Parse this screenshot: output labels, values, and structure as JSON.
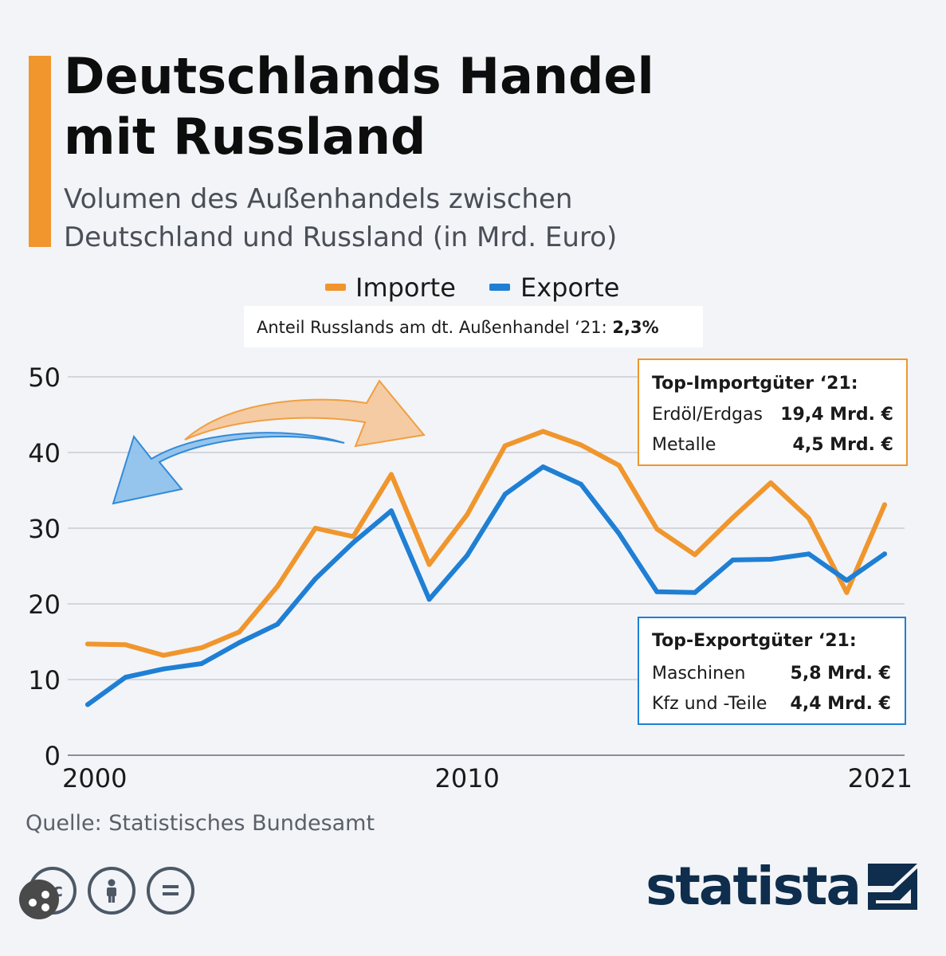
{
  "header": {
    "title": "Deutschlands Handel\nmit Russland",
    "subtitle": "Volumen des Außenhandels zwischen\nDeutschland und Russland (in Mrd. Euro)"
  },
  "legend": {
    "importe_label": "Importe",
    "exporte_label": "Exporte",
    "note_prefix": "Anteil Russlands am dt. Außenhandel ‘21: ",
    "note_value": "2,3%"
  },
  "import_box": {
    "title": "Top-Importgüter ‘21:",
    "rows": [
      {
        "label": "Erdöl/Erdgas",
        "value": "19,4 Mrd. €"
      },
      {
        "label": "Metalle",
        "value": "4,5 Mrd. €"
      }
    ]
  },
  "export_box": {
    "title": "Top-Exportgüter ‘21:",
    "rows": [
      {
        "label": "Maschinen",
        "value": "5,8 Mrd. €"
      },
      {
        "label": "Kfz und -Teile",
        "value": "4,4 Mrd. €"
      }
    ]
  },
  "colors": {
    "importe": "#f0962d",
    "exporte": "#1f7fd4",
    "grid": "#c9ccd2",
    "axis_text": "#1a1a1a",
    "import_box_border": "#f0962d",
    "export_box_border": "#1f7fd4",
    "accent": "#f0962d",
    "logo": "#0f2d4c"
  },
  "chart_data": {
    "type": "line",
    "title": "Deutschlands Handel mit Russland",
    "subtitle": "Volumen des Außenhandels zwischen Deutschland und Russland (in Mrd. Euro)",
    "xlabel": "",
    "ylabel": "",
    "x": [
      2000,
      2001,
      2002,
      2003,
      2004,
      2005,
      2006,
      2007,
      2008,
      2009,
      2010,
      2011,
      2012,
      2013,
      2014,
      2015,
      2016,
      2017,
      2018,
      2019,
      2020,
      2021
    ],
    "x_tick_labels": [
      {
        "x": 2000,
        "label": "2000"
      },
      {
        "x": 2010,
        "label": "2010"
      },
      {
        "x": 2021,
        "label": "2021"
      }
    ],
    "y_ticks": [
      0,
      10,
      20,
      30,
      40,
      50
    ],
    "y_tick_labels": [
      "0",
      "10",
      "20",
      "30",
      "40",
      "50"
    ],
    "ylim": [
      0,
      50
    ],
    "grid": true,
    "legend_position": "top-center",
    "series": [
      {
        "name": "Importe",
        "values": [
          14.7,
          14.6,
          13.2,
          14.2,
          16.3,
          22.3,
          30.0,
          28.9,
          37.1,
          25.2,
          31.8,
          40.9,
          42.8,
          41.0,
          38.3,
          29.9,
          26.5,
          31.4,
          36.0,
          31.3,
          21.5,
          33.1
        ]
      },
      {
        "name": "Exporte",
        "values": [
          6.7,
          10.3,
          11.4,
          12.1,
          14.9,
          17.3,
          23.3,
          28.1,
          32.3,
          20.6,
          26.4,
          34.5,
          38.1,
          35.8,
          29.3,
          21.6,
          21.5,
          25.8,
          25.9,
          26.6,
          23.1,
          26.6
        ]
      }
    ]
  },
  "footer": {
    "source": "Quelle: Statistisches Bundesamt",
    "cc_badges": [
      "cc-icon",
      "by-person-icon",
      "nd-equals-icon"
    ],
    "logo_text": "statista"
  }
}
